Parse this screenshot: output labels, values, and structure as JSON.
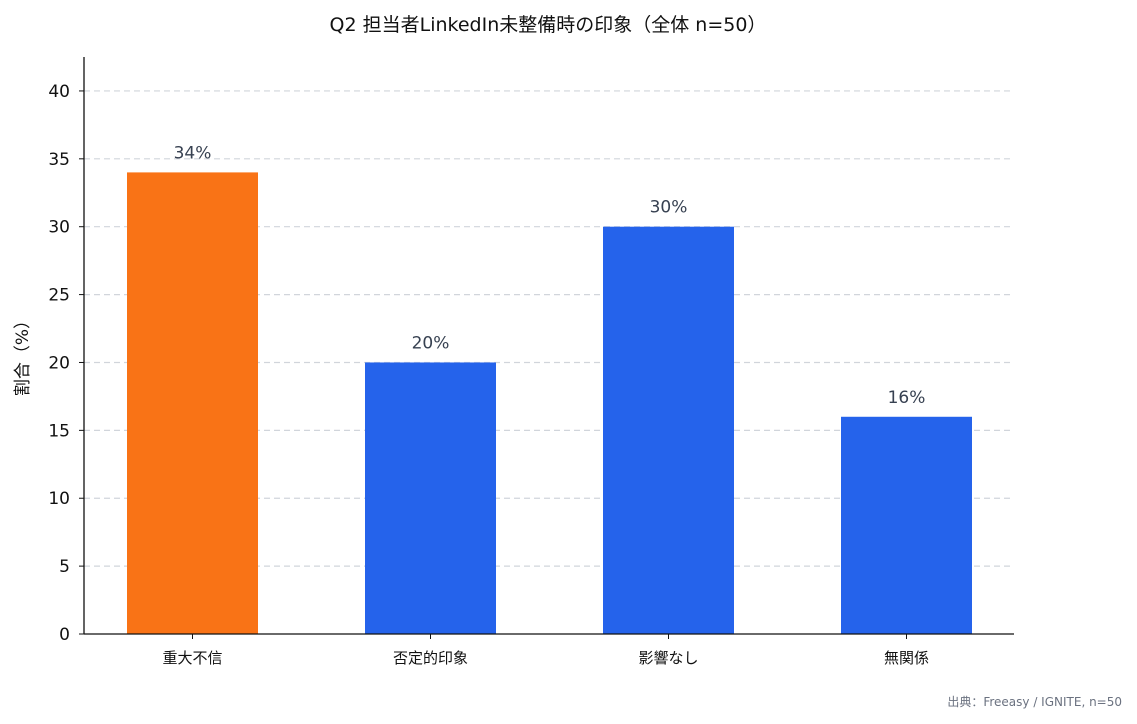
{
  "chart_data": {
    "type": "bar",
    "title": "Q2 担当者LinkedIn未整備時の印象（全体 n=50）",
    "ylabel": "割合（%）",
    "xlabel": "",
    "categories": [
      "重大不信",
      "否定的印象",
      "影響なし",
      "無関係"
    ],
    "values": [
      34,
      20,
      30,
      16
    ],
    "value_labels": [
      "34%",
      "20%",
      "30%",
      "16%"
    ],
    "ylim": [
      0,
      42.5
    ],
    "yticks": [
      0,
      5,
      10,
      15,
      20,
      25,
      30,
      35,
      40
    ],
    "grid": "y-dashed",
    "colors": [
      "#f97316",
      "#2563eb",
      "#2563eb",
      "#2563eb"
    ],
    "source": "出典：Freeasy / IGNITE, n=50"
  }
}
